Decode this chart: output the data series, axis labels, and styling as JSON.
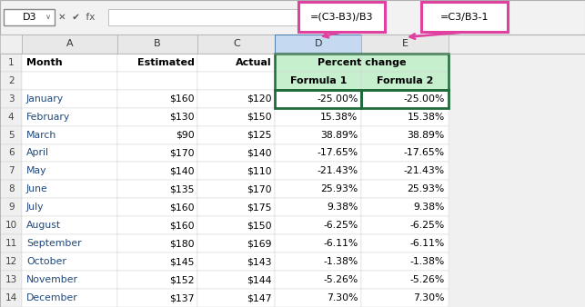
{
  "formula_bar_cell": "D3",
  "formula1_box": "=(C3-B3)/B3",
  "formula2_box": "=C3/B3-1",
  "months": [
    "January",
    "February",
    "March",
    "April",
    "May",
    "June",
    "July",
    "August",
    "September",
    "October",
    "November",
    "December"
  ],
  "estimated": [
    "$160",
    "$130",
    "$90",
    "$170",
    "$140",
    "$135",
    "$160",
    "$160",
    "$180",
    "$145",
    "$152",
    "$137"
  ],
  "actual": [
    "$120",
    "$150",
    "$125",
    "$140",
    "$110",
    "$170",
    "$175",
    "$150",
    "$169",
    "$143",
    "$144",
    "$147"
  ],
  "formula1": [
    "-25.00%",
    "15.38%",
    "38.89%",
    "-17.65%",
    "-21.43%",
    "25.93%",
    "9.38%",
    "-6.25%",
    "-6.11%",
    "-1.38%",
    "-5.26%",
    "7.30%"
  ],
  "formula2": [
    "-25.00%",
    "15.38%",
    "38.89%",
    "-17.65%",
    "-21.43%",
    "25.93%",
    "9.38%",
    "-6.25%",
    "-6.11%",
    "-1.38%",
    "-5.26%",
    "7.30%"
  ],
  "bg_color": "#f0f0f0",
  "formula_bar_bg": "#f2f2f2",
  "row_num_bg": "#efefef",
  "col_header_bg": "#e8e8e8",
  "col_d_header_bg": "#c5d9f1",
  "white": "#ffffff",
  "percent_header_bg": "#c6efce",
  "green_border": "#1f6b3a",
  "pink_color": "#e040a0",
  "grid_color": "#d0d0d0",
  "month_color": "#1f497d",
  "fig_width": 6.43,
  "fig_height": 3.38
}
